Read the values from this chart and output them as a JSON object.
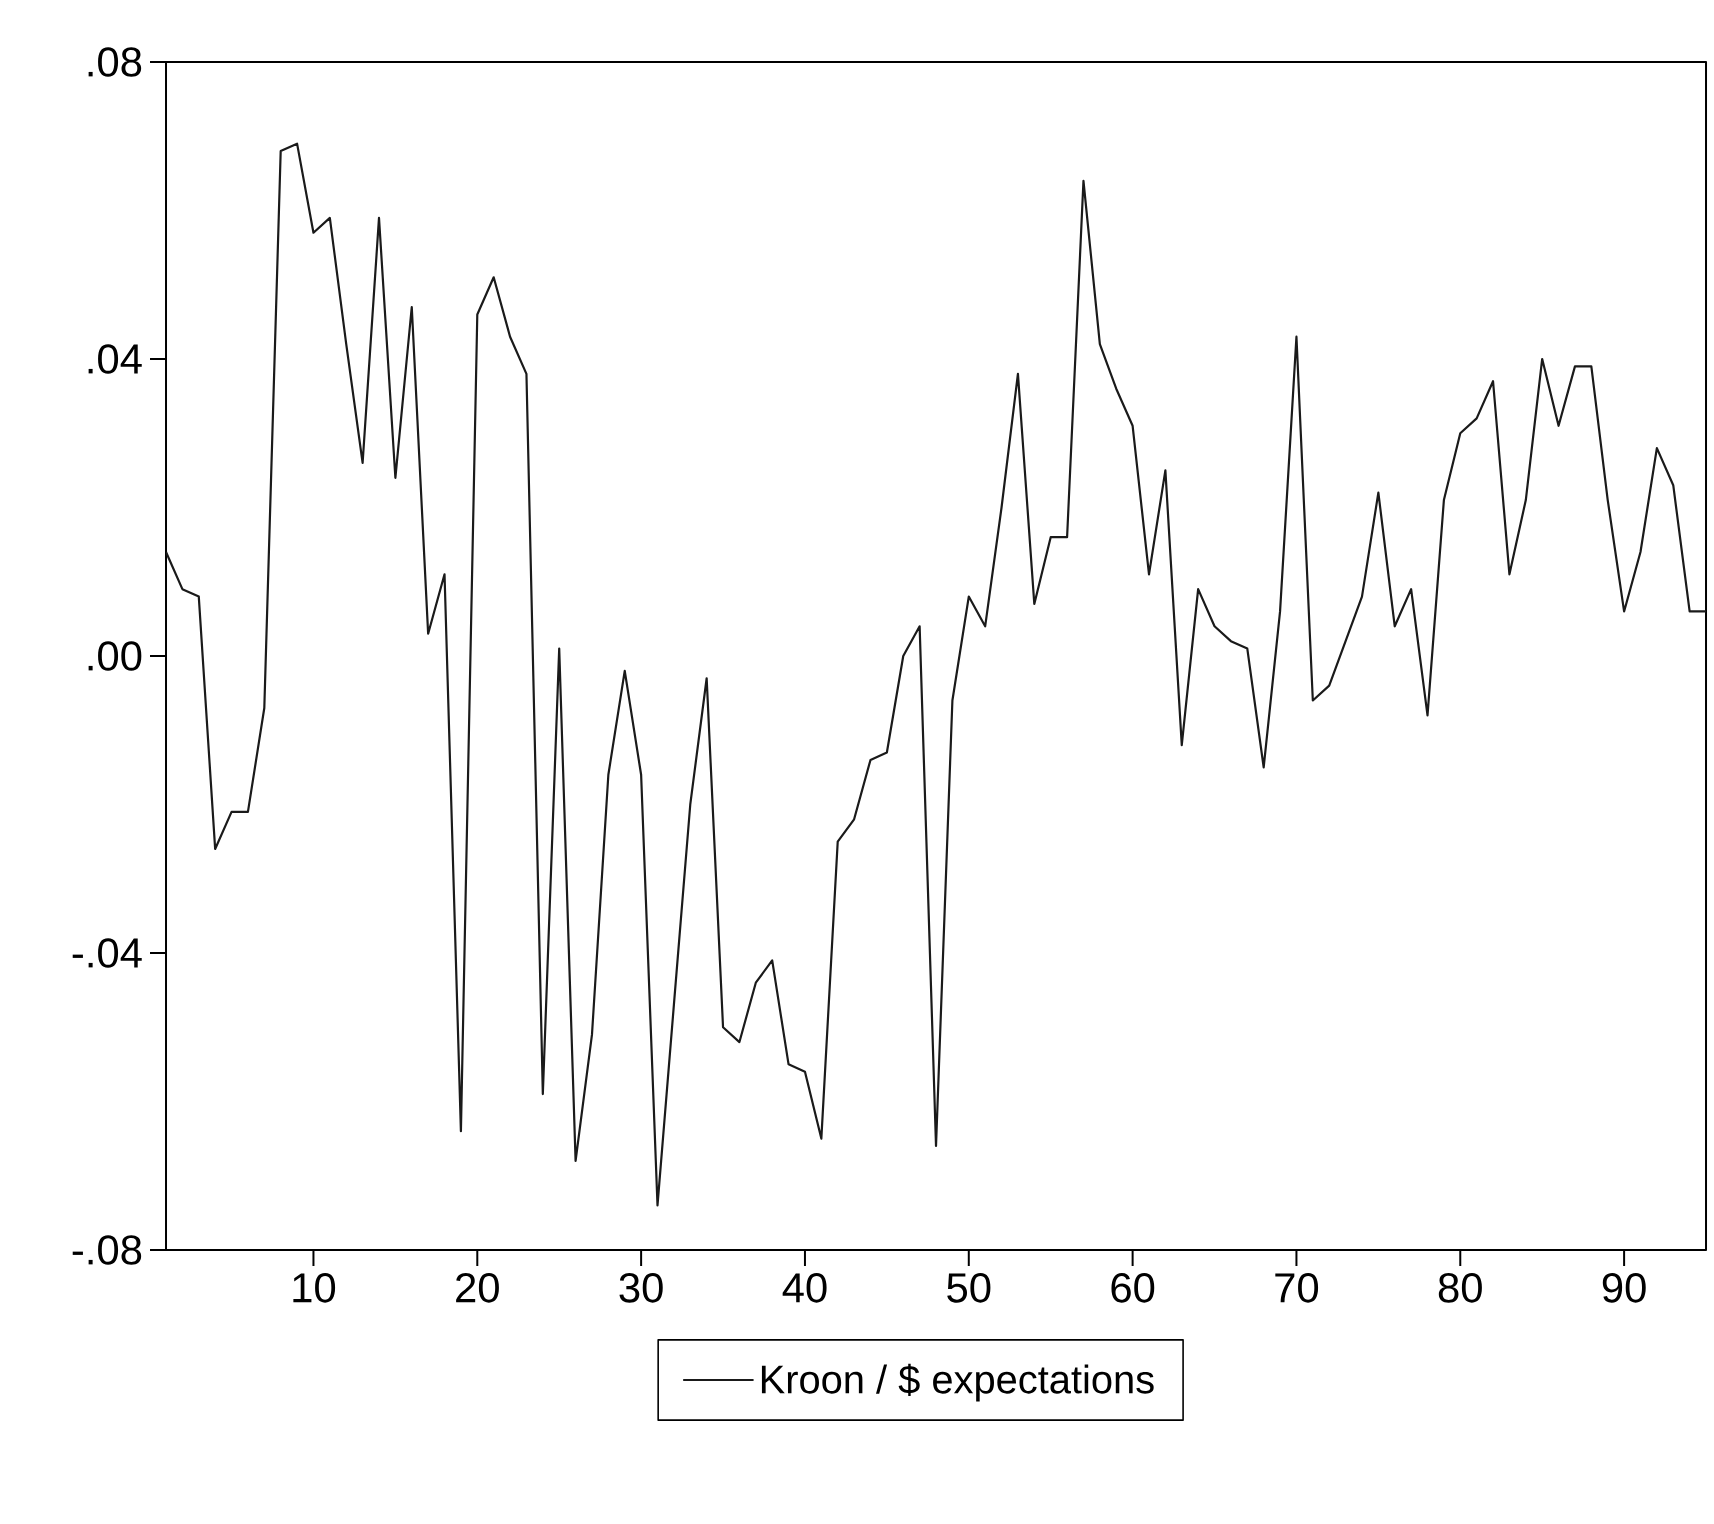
{
  "chart_data": {
    "type": "line",
    "x": [
      1,
      2,
      3,
      4,
      5,
      6,
      7,
      8,
      9,
      10,
      11,
      12,
      13,
      14,
      15,
      16,
      17,
      18,
      19,
      20,
      21,
      22,
      23,
      24,
      25,
      26,
      27,
      28,
      29,
      30,
      31,
      32,
      33,
      34,
      35,
      36,
      37,
      38,
      39,
      40,
      41,
      42,
      43,
      44,
      45,
      46,
      47,
      48,
      49,
      50,
      51,
      52,
      53,
      54,
      55,
      56,
      57,
      58,
      59,
      60,
      61,
      62,
      63,
      64,
      65,
      66,
      67,
      68,
      69,
      70,
      71,
      72,
      73,
      74,
      75,
      76,
      77,
      78,
      79,
      80,
      81,
      82,
      83,
      84,
      85,
      86,
      87,
      88,
      89,
      90,
      91,
      92,
      93,
      94,
      95
    ],
    "series": [
      {
        "name": "Kroon / $ expectations",
        "color": "#1a1a1a",
        "values": [
          0.014,
          0.009,
          0.008,
          -0.026,
          -0.021,
          -0.021,
          -0.007,
          0.068,
          0.069,
          0.057,
          0.059,
          0.042,
          0.026,
          0.059,
          0.024,
          0.047,
          0.003,
          0.011,
          -0.064,
          0.046,
          0.051,
          0.043,
          0.038,
          -0.059,
          0.001,
          -0.068,
          -0.051,
          -0.016,
          -0.002,
          -0.016,
          -0.074,
          -0.047,
          -0.02,
          -0.003,
          -0.05,
          -0.052,
          -0.044,
          -0.041,
          -0.055,
          -0.056,
          -0.065,
          -0.025,
          -0.022,
          -0.014,
          -0.013,
          0.0,
          0.004,
          -0.066,
          -0.006,
          0.008,
          0.004,
          0.02,
          0.038,
          0.007,
          0.016,
          0.016,
          0.064,
          0.042,
          0.036,
          0.031,
          0.011,
          0.025,
          -0.012,
          0.009,
          0.004,
          0.002,
          0.001,
          -0.015,
          0.006,
          0.043,
          -0.006,
          -0.004,
          0.002,
          0.008,
          0.022,
          0.004,
          0.009,
          -0.008,
          0.021,
          0.03,
          0.032,
          0.037,
          0.011,
          0.021,
          0.04,
          0.031,
          0.039,
          0.039,
          0.021,
          0.006,
          0.014,
          0.028,
          0.023,
          0.006,
          0.006
        ]
      }
    ],
    "xlim": [
      1,
      95
    ],
    "xticks": [
      10,
      20,
      30,
      40,
      50,
      60,
      70,
      80,
      90
    ],
    "ylim": [
      -0.08,
      0.08
    ],
    "yticks": [
      {
        "value": -0.08,
        "label": "-.08"
      },
      {
        "value": -0.04,
        "label": "-.04"
      },
      {
        "value": 0.0,
        "label": ".00"
      },
      {
        "value": 0.04,
        "label": ".04"
      },
      {
        "value": 0.08,
        "label": ".08"
      }
    ],
    "grid": false,
    "legend": "bottom",
    "marker": "none",
    "line_style": "solid"
  }
}
